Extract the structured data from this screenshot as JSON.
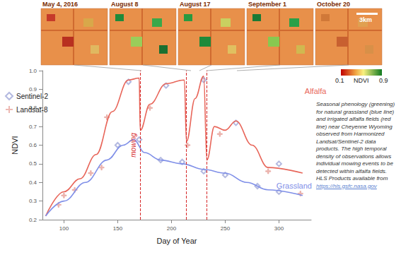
{
  "chart_data": {
    "type": "line",
    "xlabel": "Day of Year",
    "ylabel": "NDVI",
    "xlim": [
      80,
      330
    ],
    "xticks": [
      100,
      150,
      200,
      250,
      300
    ],
    "ylim": [
      0.2,
      1
    ],
    "yticks": [
      0.2,
      0.3,
      0.4,
      0.5,
      0.6,
      0.7,
      0.8,
      0.9,
      {
        "value": 1,
        "label": "1.0"
      }
    ],
    "grid": false,
    "legend": "left",
    "series": [
      {
        "name": "Alfalfa",
        "type": "line",
        "color": "#e8665a",
        "x": [
          83,
          100,
          115,
          130,
          145,
          160,
          170,
          171,
          180,
          195,
          212,
          214,
          222,
          230,
          233,
          240,
          250,
          260,
          275,
          290,
          322
        ],
        "values": [
          0.22,
          0.35,
          0.42,
          0.55,
          0.78,
          0.95,
          0.96,
          0.68,
          0.82,
          0.93,
          0.95,
          0.62,
          0.85,
          0.97,
          0.52,
          0.7,
          0.68,
          0.73,
          0.6,
          0.48,
          0.45
        ]
      },
      {
        "name": "Grassland",
        "type": "line",
        "color": "#7f8fe8",
        "x": [
          83,
          100,
          120,
          140,
          155,
          165,
          175,
          190,
          210,
          230,
          250,
          270,
          290,
          322
        ],
        "values": [
          0.22,
          0.3,
          0.4,
          0.52,
          0.6,
          0.63,
          0.56,
          0.52,
          0.5,
          0.47,
          0.45,
          0.4,
          0.36,
          0.33
        ]
      },
      {
        "name": "Sentinel-2",
        "type": "scatter",
        "marker": "diamond",
        "color": "#a0a8d8",
        "x": [
          150,
          170,
          190,
          210,
          230,
          250,
          280,
          300,
          160,
          195,
          230,
          260,
          300
        ],
        "values": [
          0.6,
          0.63,
          0.52,
          0.51,
          0.46,
          0.44,
          0.38,
          0.35,
          0.94,
          0.92,
          0.95,
          0.72,
          0.5
        ]
      },
      {
        "name": "Landsat-8",
        "type": "scatter",
        "marker": "plus",
        "color": "#e8a8a0",
        "x": [
          95,
          110,
          125,
          140,
          180,
          215,
          245,
          290,
          320,
          100,
          135
        ],
        "values": [
          0.28,
          0.36,
          0.45,
          0.75,
          0.8,
          0.6,
          0.66,
          0.46,
          0.34,
          0.33,
          0.48
        ]
      }
    ],
    "annotations": [
      {
        "text": "mowing",
        "x": [
          171,
          214,
          233
        ],
        "color": "#d62728",
        "line_style": "dashed"
      }
    ],
    "images": [
      {
        "label": "May 4, 2016"
      },
      {
        "label": "August 8"
      },
      {
        "label": "August 17"
      },
      {
        "label": "September 1"
      },
      {
        "label": "October 20"
      }
    ],
    "scale_bar": "3km",
    "colorbar": {
      "label": "NDVI",
      "range": [
        0.1,
        0.9
      ],
      "ticks": [
        0.1,
        0.9
      ]
    },
    "caption": "Seasonal phenology (greening) for natural grassland (blue line) and irrigated alfalfa fields (red line) near Cheyenne Wyoming observed from Harmonized Landsat/Sentinel-2 data products. The high temporal density of observations allows individual mowing events to be detected within alfalfa fields. HLS Products available from",
    "caption_link": "https://hls.gsfc.nasa.gov"
  }
}
